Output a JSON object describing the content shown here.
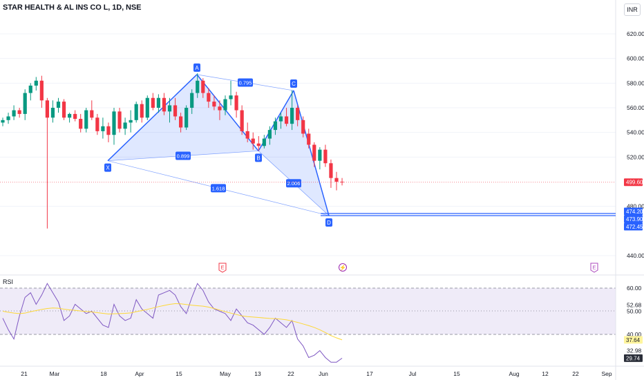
{
  "header": {
    "title": "STAR HEALTH & AL INS CO L, 1D, NSE",
    "currency": "INR"
  },
  "price_axis": {
    "ticks": [
      "620.00",
      "600.00",
      "580.00",
      "560.00",
      "540.00",
      "520.00",
      "480.00",
      "440.00"
    ],
    "tick_values": [
      620,
      600,
      580,
      560,
      540,
      520,
      480,
      440
    ],
    "labels": [
      {
        "text": "499.60",
        "value": 499.6,
        "color": "#f23645"
      },
      {
        "text": "474.20",
        "value": 474.2,
        "color": "#2962ff"
      },
      {
        "text": "473.90",
        "value": 473.9,
        "color": "#2962ff"
      },
      {
        "text": "472.45",
        "value": 472.45,
        "color": "#2962ff"
      }
    ]
  },
  "rsi": {
    "label": "RSI",
    "ticks": [
      "60.00",
      "52.68",
      "50.00",
      "40.00",
      "32.98"
    ],
    "tick_values": [
      60,
      52.68,
      50,
      40,
      32.98
    ],
    "labels": [
      {
        "text": "37.64",
        "value": 37.64,
        "color": "#fff59d",
        "text_color": "#131722"
      },
      {
        "text": "29.74",
        "value": 29.74,
        "color": "#2a2e39",
        "text_color": "#ffffff"
      }
    ]
  },
  "time_axis": {
    "labels": [
      "21",
      "Mar",
      "18",
      "Apr",
      "15",
      "May",
      "13",
      "22",
      "Jun",
      "17",
      "Jul",
      "15",
      "Aug",
      "12",
      "22",
      "Sep"
    ]
  },
  "pattern": {
    "points": [
      {
        "name": "X",
        "value": 517
      },
      {
        "name": "A",
        "value": 587
      },
      {
        "name": "B",
        "value": 525
      },
      {
        "name": "C",
        "value": 574
      },
      {
        "name": "D",
        "value": 472.5
      }
    ],
    "ratios": [
      "0.795",
      "0.899",
      "1.618",
      "2.006"
    ]
  },
  "events": [
    {
      "type": "earnings",
      "glyph": "E",
      "color": "#f23645"
    },
    {
      "type": "dividend",
      "glyph": "⚡",
      "color": "#9c27b0"
    },
    {
      "type": "earnings",
      "glyph": "E",
      "color": "#ab47bc"
    }
  ],
  "colors": {
    "up": "#089981",
    "down": "#f23645",
    "pattern": "#2962ff",
    "rsi": "#7e57c2",
    "rsi_ma": "#fdd835"
  },
  "chart_data": {
    "type": "candlestick",
    "ohlc": [
      [
        548,
        552,
        545,
        550
      ],
      [
        550,
        556,
        547,
        553
      ],
      [
        553,
        562,
        550,
        558
      ],
      [
        558,
        560,
        552,
        555
      ],
      [
        555,
        575,
        550,
        572
      ],
      [
        572,
        580,
        566,
        578
      ],
      [
        578,
        585,
        574,
        582
      ],
      [
        582,
        586,
        560,
        566
      ],
      [
        566,
        568,
        462,
        552
      ],
      [
        552,
        566,
        548,
        560
      ],
      [
        560,
        568,
        556,
        565
      ],
      [
        565,
        567,
        550,
        552
      ],
      [
        552,
        556,
        548,
        555
      ],
      [
        555,
        558,
        549,
        551
      ],
      [
        551,
        555,
        540,
        543
      ],
      [
        543,
        560,
        540,
        558
      ],
      [
        558,
        566,
        550,
        552
      ],
      [
        552,
        555,
        538,
        541
      ],
      [
        541,
        552,
        535,
        545
      ],
      [
        545,
        548,
        532,
        538
      ],
      [
        538,
        560,
        530,
        557
      ],
      [
        557,
        560,
        540,
        543
      ],
      [
        543,
        552,
        538,
        548
      ],
      [
        548,
        558,
        540,
        550
      ],
      [
        550,
        565,
        548,
        563
      ],
      [
        563,
        566,
        548,
        552
      ],
      [
        552,
        570,
        550,
        568
      ],
      [
        568,
        572,
        558,
        560
      ],
      [
        560,
        571,
        556,
        568
      ],
      [
        568,
        572,
        554,
        557
      ],
      [
        557,
        568,
        548,
        562
      ],
      [
        562,
        568,
        550,
        553
      ],
      [
        553,
        556,
        540,
        544
      ],
      [
        544,
        562,
        542,
        560
      ],
      [
        560,
        575,
        555,
        572
      ],
      [
        572,
        588,
        568,
        582
      ],
      [
        582,
        584,
        568,
        572
      ],
      [
        572,
        576,
        560,
        565
      ],
      [
        565,
        570,
        558,
        561
      ],
      [
        561,
        566,
        550,
        558
      ],
      [
        558,
        570,
        554,
        567
      ],
      [
        567,
        582,
        562,
        570
      ],
      [
        570,
        573,
        552,
        558
      ],
      [
        558,
        562,
        538,
        541
      ],
      [
        541,
        548,
        532,
        535
      ],
      [
        535,
        540,
        526,
        531
      ],
      [
        531,
        537,
        525,
        529
      ],
      [
        529,
        538,
        527,
        535
      ],
      [
        535,
        545,
        530,
        542
      ],
      [
        542,
        552,
        538,
        549
      ],
      [
        549,
        556,
        543,
        553
      ],
      [
        553,
        560,
        545,
        547
      ],
      [
        547,
        574,
        542,
        560
      ],
      [
        560,
        562,
        545,
        550
      ],
      [
        550,
        553,
        536,
        539
      ],
      [
        539,
        543,
        527,
        530
      ],
      [
        530,
        532,
        512,
        517
      ],
      [
        517,
        528,
        510,
        526
      ],
      [
        526,
        530,
        512,
        515
      ],
      [
        515,
        518,
        495,
        503
      ],
      [
        503,
        508,
        493,
        500
      ],
      [
        500,
        503,
        497,
        499.6
      ]
    ],
    "rsi_values": [
      47,
      42,
      38,
      48,
      56,
      58,
      53,
      57,
      62,
      58,
      54,
      46,
      48,
      53,
      51,
      49,
      50,
      47,
      44,
      43,
      53,
      48,
      46,
      47,
      55,
      51,
      49,
      47,
      57,
      58,
      59,
      57,
      52,
      49,
      56,
      62,
      59,
      54,
      51,
      50,
      49,
      46,
      51,
      48,
      45,
      44,
      42,
      40,
      43,
      47,
      45,
      43,
      46,
      38,
      35,
      30,
      31,
      33,
      30,
      28,
      28,
      29.74
    ],
    "rsi_ma_values": [
      50,
      49.6,
      49.2,
      49,
      49.2,
      49.8,
      50.3,
      50.8,
      51.2,
      51.4,
      51.3,
      50.9,
      50.6,
      50.4,
      50.1,
      49.9,
      49.7,
      49.4,
      49.1,
      48.8,
      48.9,
      49,
      49.1,
      49.3,
      49.8,
      50.3,
      50.8,
      51.4,
      52,
      52.5,
      53,
      53.3,
      53.2,
      52.9,
      52.6,
      52.4,
      52.2,
      51.8,
      51.2,
      50.5,
      49.8,
      49.2,
      48.6,
      48,
      47.7,
      47.5,
      47.3,
      47.1,
      46.9,
      46.8,
      46.6,
      46.3,
      45.8,
      45.2,
      44.5,
      43.8,
      43,
      42,
      40.8,
      39.5,
      38.5,
      37.64
    ],
    "ylim": [
      430,
      633
    ],
    "rsi_ylim": [
      27,
      64
    ]
  }
}
